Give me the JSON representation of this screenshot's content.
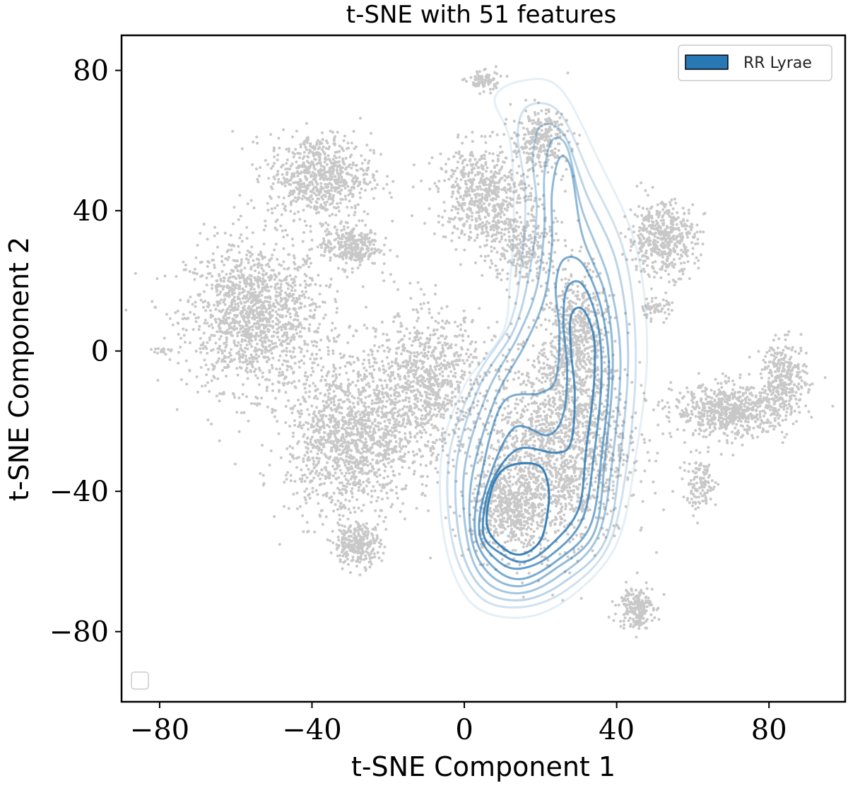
{
  "chart_data": {
    "type": "scatter",
    "title": "t-SNE with 51 features",
    "xlabel": "t-SNE Component 1",
    "ylabel": "t-SNE Component 2",
    "xlim": [
      -90,
      100
    ],
    "ylim": [
      -100,
      90
    ],
    "xticks": [
      -80,
      -40,
      0,
      40,
      80
    ],
    "yticks": [
      -80,
      -40,
      0,
      40,
      80
    ],
    "xtick_labels": [
      "−80",
      "−40",
      "0",
      "40",
      "80"
    ],
    "ytick_labels": [
      "−80",
      "−40",
      "0",
      "40",
      "80"
    ],
    "grid": false,
    "background_points": {
      "color": "#c8c8c8",
      "clusters": [
        {
          "center": [
            -55,
            10
          ],
          "spread": [
            12,
            14
          ],
          "n": 1400
        },
        {
          "center": [
            -38,
            50
          ],
          "spread": [
            9,
            8
          ],
          "n": 700
        },
        {
          "center": [
            -30,
            30
          ],
          "spread": [
            5,
            4
          ],
          "n": 300
        },
        {
          "center": [
            -30,
            -25
          ],
          "spread": [
            11,
            15
          ],
          "n": 1300
        },
        {
          "center": [
            -28,
            -55
          ],
          "spread": [
            4,
            4
          ],
          "n": 260
        },
        {
          "center": [
            -10,
            -10
          ],
          "spread": [
            10,
            14
          ],
          "n": 900
        },
        {
          "center": [
            5,
            45
          ],
          "spread": [
            8,
            9
          ],
          "n": 600
        },
        {
          "center": [
            15,
            30
          ],
          "spread": [
            6,
            8
          ],
          "n": 300
        },
        {
          "center": [
            5,
            77
          ],
          "spread": [
            3,
            2
          ],
          "n": 80
        },
        {
          "center": [
            20,
            60
          ],
          "spread": [
            5,
            6
          ],
          "n": 280
        },
        {
          "center": [
            25,
            -25
          ],
          "spread": [
            12,
            20
          ],
          "n": 1700
        },
        {
          "center": [
            12,
            -45
          ],
          "spread": [
            7,
            9
          ],
          "n": 600
        },
        {
          "center": [
            30,
            5
          ],
          "spread": [
            5,
            12
          ],
          "n": 500
        },
        {
          "center": [
            52,
            32
          ],
          "spread": [
            6,
            7
          ],
          "n": 480
        },
        {
          "center": [
            50,
            12
          ],
          "spread": [
            3,
            2
          ],
          "n": 60
        },
        {
          "center": [
            70,
            -17
          ],
          "spread": [
            10,
            5
          ],
          "n": 650
        },
        {
          "center": [
            84,
            -8
          ],
          "spread": [
            4,
            7
          ],
          "n": 300
        },
        {
          "center": [
            62,
            -38
          ],
          "spread": [
            3,
            5
          ],
          "n": 120
        },
        {
          "center": [
            45,
            -73
          ],
          "spread": [
            3,
            4
          ],
          "n": 200
        },
        {
          "center": [
            -80,
            0
          ],
          "spread": [
            1.5,
            1
          ],
          "n": 15
        }
      ]
    },
    "series": [
      {
        "name": "RR Lyrae",
        "type": "kde_contour",
        "color": "#2878b5",
        "levels": [
          {
            "alpha": 0.12,
            "points": [
              [
                -5,
                -55
              ],
              [
                2,
                -72
              ],
              [
                15,
                -76
              ],
              [
                28,
                -70
              ],
              [
                40,
                -55
              ],
              [
                45,
                -30
              ],
              [
                48,
                0
              ],
              [
                45,
                30
              ],
              [
                35,
                55
              ],
              [
                25,
                75
              ],
              [
                15,
                77
              ],
              [
                8,
                72
              ],
              [
                12,
                60
              ],
              [
                13,
                40
              ],
              [
                12,
                20
              ],
              [
                10,
                5
              ],
              [
                0,
                -10
              ],
              [
                -6,
                -30
              ]
            ]
          },
          {
            "alpha": 0.22,
            "points": [
              [
                -3,
                -55
              ],
              [
                4,
                -70
              ],
              [
                15,
                -73
              ],
              [
                27,
                -68
              ],
              [
                38,
                -55
              ],
              [
                43,
                -30
              ],
              [
                45,
                0
              ],
              [
                42,
                28
              ],
              [
                33,
                50
              ],
              [
                25,
                68
              ],
              [
                17,
                70
              ],
              [
                14,
                62
              ],
              [
                16,
                45
              ],
              [
                15,
                25
              ],
              [
                12,
                8
              ],
              [
                3,
                -8
              ],
              [
                -4,
                -30
              ]
            ]
          },
          {
            "alpha": 0.32,
            "points": [
              [
                -1,
                -55
              ],
              [
                5,
                -68
              ],
              [
                15,
                -71
              ],
              [
                26,
                -66
              ],
              [
                37,
                -54
              ],
              [
                41,
                -30
              ],
              [
                43,
                0
              ],
              [
                40,
                25
              ],
              [
                32,
                45
              ],
              [
                26,
                62
              ],
              [
                20,
                64
              ],
              [
                18,
                55
              ],
              [
                19,
                40
              ],
              [
                17,
                22
              ],
              [
                13,
                6
              ],
              [
                4,
                -10
              ],
              [
                -2,
                -32
              ]
            ]
          },
          {
            "alpha": 0.42,
            "points": [
              [
                1,
                -55
              ],
              [
                6,
                -66
              ],
              [
                15,
                -69
              ],
              [
                25,
                -64
              ],
              [
                35,
                -53
              ],
              [
                39,
                -30
              ],
              [
                41,
                -2
              ],
              [
                38,
                20
              ],
              [
                31,
                40
              ],
              [
                27,
                58
              ],
              [
                23,
                60
              ],
              [
                21,
                50
              ],
              [
                21,
                35
              ],
              [
                19,
                18
              ],
              [
                14,
                4
              ],
              [
                6,
                -12
              ],
              [
                0,
                -34
              ]
            ]
          },
          {
            "alpha": 0.52,
            "points": [
              [
                2,
                -54
              ],
              [
                7,
                -64
              ],
              [
                15,
                -67
              ],
              [
                24,
                -62
              ],
              [
                34,
                -52
              ],
              [
                37,
                -30
              ],
              [
                39,
                -4
              ],
              [
                37,
                16
              ],
              [
                31,
                33
              ],
              [
                28,
                52
              ],
              [
                25,
                55
              ],
              [
                23,
                45
              ],
              [
                23,
                30
              ],
              [
                21,
                15
              ],
              [
                16,
                2
              ],
              [
                8,
                -14
              ],
              [
                2,
                -36
              ]
            ]
          },
          {
            "alpha": 0.62,
            "points": [
              [
                3,
                -53
              ],
              [
                8,
                -62
              ],
              [
                15,
                -65
              ],
              [
                24,
                -60
              ],
              [
                33,
                -50
              ],
              [
                36,
                -30
              ],
              [
                38,
                -6
              ],
              [
                36,
                12
              ],
              [
                31,
                25
              ],
              [
                26,
                26
              ],
              [
                24,
                18
              ],
              [
                25,
                5
              ],
              [
                24,
                -8
              ],
              [
                20,
                -12
              ],
              [
                10,
                -15
              ],
              [
                4,
                -38
              ]
            ]
          },
          {
            "alpha": 0.72,
            "points": [
              [
                4,
                -52
              ],
              [
                9,
                -60
              ],
              [
                15,
                -62
              ],
              [
                23,
                -58
              ],
              [
                31,
                -48
              ],
              [
                34,
                -30
              ],
              [
                36,
                -8
              ],
              [
                35,
                8
              ],
              [
                31,
                19
              ],
              [
                27,
                18
              ],
              [
                26,
                8
              ],
              [
                27,
                -5
              ],
              [
                26,
                -18
              ],
              [
                22,
                -24
              ],
              [
                13,
                -22
              ],
              [
                6,
                -38
              ]
            ]
          },
          {
            "alpha": 0.82,
            "points": [
              [
                5,
                -52
              ],
              [
                10,
                -58
              ],
              [
                16,
                -60
              ],
              [
                23,
                -55
              ],
              [
                30,
                -45
              ],
              [
                32,
                -28
              ],
              [
                34,
                -10
              ],
              [
                34,
                4
              ],
              [
                31,
                12
              ],
              [
                28,
                10
              ],
              [
                28,
                0
              ],
              [
                29,
                -12
              ],
              [
                28,
                -26
              ],
              [
                24,
                -29
              ],
              [
                14,
                -28
              ],
              [
                7,
                -38
              ]
            ]
          },
          {
            "alpha": 0.92,
            "points": [
              [
                6,
                -50
              ],
              [
                10,
                -56
              ],
              [
                15,
                -58
              ],
              [
                20,
                -54
              ],
              [
                22,
                -45
              ],
              [
                22,
                -38
              ],
              [
                20,
                -33
              ],
              [
                15,
                -32
              ],
              [
                10,
                -34
              ],
              [
                7,
                -40
              ]
            ]
          }
        ]
      }
    ],
    "legend": {
      "position": "top-right",
      "entries": [
        "RR Lyrae"
      ]
    }
  }
}
